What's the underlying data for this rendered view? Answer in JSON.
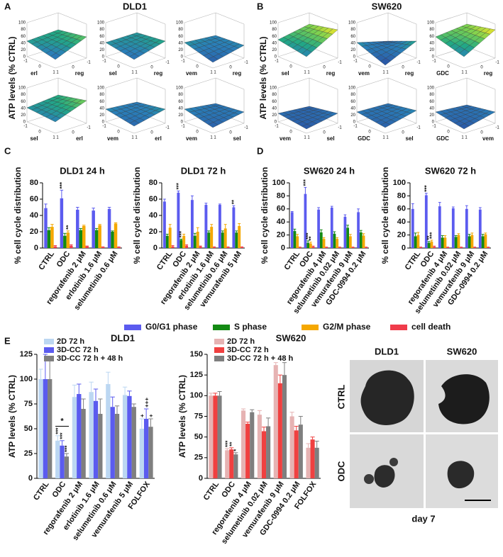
{
  "panel_labels": [
    "A",
    "B",
    "C",
    "D",
    "E"
  ],
  "surfaces": [
    {
      "title": "DLD1",
      "ylabel": "ATP levels (% CTRL)",
      "panels": [
        [
          "erl",
          "reg"
        ],
        [
          "sel",
          "reg"
        ],
        [
          "vem",
          "reg"
        ],
        [
          "sel",
          "erl"
        ],
        [
          "vem",
          "erl"
        ],
        [
          "vem",
          "sel"
        ]
      ]
    },
    {
      "title": "SW620",
      "ylabel": "ATP levels (% CTRL)",
      "panels": [
        [
          "sel",
          "reg"
        ],
        [
          "vem",
          "reg"
        ],
        [
          "GDC",
          "reg"
        ],
        [
          "vem",
          "sel"
        ],
        [
          "GDC",
          "sel"
        ],
        [
          "GDC",
          "vem"
        ]
      ]
    }
  ],
  "surface_zticks": [
    0,
    20,
    40,
    60,
    80,
    100
  ],
  "surface_xyticks": [
    -1,
    0,
    1
  ],
  "cell_cycle_legend": [
    {
      "name": "G0/G1 phase",
      "color": "#5b5bef"
    },
    {
      "name": "S phase",
      "color": "#138a13"
    },
    {
      "name": "G2/M phase",
      "color": "#f5a800"
    },
    {
      "name": "cell death",
      "color": "#f03c4b"
    }
  ],
  "chart_data": [
    {
      "type": "bar",
      "title": "DLD1 24 h",
      "ylabel": "% cell cycle distribution",
      "ylim": [
        0,
        80
      ],
      "yticks": [
        0,
        20,
        40,
        60,
        80
      ],
      "categories": [
        "CTRL",
        "ODC",
        "regorafenib 2 μM",
        "erlotinib 1.6 μM",
        "selumetinib 0.6 μM"
      ],
      "series": [
        {
          "values": [
            49,
            61,
            47,
            46,
            48
          ],
          "errors": [
            5,
            10,
            3,
            3,
            2
          ],
          "marks": [
            null,
            "***",
            null,
            null,
            null
          ]
        },
        {
          "values": [
            22,
            15,
            22,
            22,
            20
          ],
          "errors": [
            3,
            3,
            2,
            2,
            1
          ],
          "marks": [
            null,
            null,
            null,
            null,
            null
          ]
        },
        {
          "values": [
            26,
            19,
            27,
            28,
            30
          ],
          "errors": [
            3,
            2,
            1,
            1,
            1
          ],
          "marks": [
            null,
            "**",
            null,
            null,
            null
          ]
        },
        {
          "values": [
            2,
            3,
            2,
            1,
            1
          ],
          "errors": [
            1,
            1,
            0.5,
            0.5,
            0.5
          ],
          "marks": [
            null,
            null,
            null,
            null,
            null
          ]
        }
      ]
    },
    {
      "type": "bar",
      "title": "DLD1 72 h",
      "ylabel": "% cell cycle distribution",
      "ylim": [
        0,
        80
      ],
      "yticks": [
        0,
        20,
        40,
        60,
        80
      ],
      "categories": [
        "CTRL",
        "ODC",
        "regorafenib 2 μM",
        "erlotinib 1.6 μM",
        "selumetinib 0.6 μM",
        "vemurafenib 5 μM"
      ],
      "series": [
        {
          "values": [
            57,
            68,
            59,
            53,
            53,
            50
          ],
          "errors": [
            3,
            2,
            5,
            2,
            1,
            2
          ],
          "marks": [
            null,
            "***",
            null,
            null,
            null,
            "**"
          ]
        },
        {
          "values": [
            15,
            10,
            15,
            19,
            19,
            19
          ],
          "errors": [
            2,
            1,
            3,
            2,
            2,
            2
          ],
          "marks": [
            null,
            "***",
            null,
            null,
            null,
            null
          ]
        },
        {
          "values": [
            25,
            15,
            20,
            26,
            24,
            27
          ],
          "errors": [
            4,
            2,
            5,
            3,
            5,
            3
          ],
          "marks": [
            null,
            null,
            null,
            null,
            null,
            null
          ]
        },
        {
          "values": [
            2,
            3,
            2,
            1,
            1,
            1
          ],
          "errors": [
            1,
            1,
            0.5,
            0.5,
            0.5,
            0.5
          ],
          "marks": [
            null,
            null,
            null,
            null,
            null,
            null
          ]
        }
      ]
    },
    {
      "type": "bar",
      "title": "SW620 24 h",
      "ylabel": "% cell cycle distribution",
      "ylim": [
        0,
        100
      ],
      "yticks": [
        0,
        20,
        40,
        60,
        80,
        100
      ],
      "categories": [
        "CTRL",
        "ODC",
        "regorafenib 4 μM",
        "selumetinib 0.02 μM",
        "vemurafenib 9 μM",
        "GDC-0994 0.2 μM"
      ],
      "series": [
        {
          "values": [
            55,
            83,
            59,
            62,
            48,
            55
          ],
          "errors": [
            1,
            10,
            3,
            2,
            3,
            5
          ],
          "marks": [
            null,
            "***",
            null,
            null,
            null,
            null
          ]
        },
        {
          "values": [
            26,
            8,
            24,
            22,
            31,
            24
          ],
          "errors": [
            3,
            3,
            4,
            3,
            4,
            3
          ],
          "marks": [
            null,
            "***",
            null,
            null,
            null,
            null
          ]
        },
        {
          "values": [
            18,
            7,
            14,
            14,
            18,
            19
          ],
          "errors": [
            3,
            2,
            2,
            2,
            3,
            3
          ],
          "marks": [
            null,
            "**",
            null,
            null,
            null,
            null
          ]
        },
        {
          "values": [
            1,
            2,
            1,
            1,
            1,
            1
          ],
          "errors": [
            0.5,
            1,
            0.5,
            0.5,
            0.5,
            0.5
          ],
          "marks": [
            null,
            null,
            null,
            null,
            null,
            null
          ]
        }
      ]
    },
    {
      "type": "bar",
      "title": "SW620 72 h",
      "ylabel": "% cell cycle distribution",
      "ylim": [
        0,
        100
      ],
      "yticks": [
        0,
        20,
        40,
        60,
        80,
        100
      ],
      "categories": [
        "CTRL",
        "ODC",
        "regorafenib 4 μM",
        "selumetinib 0.02 μM",
        "vemurafenib 9 μM",
        "GDC-0994 0.2 μM"
      ],
      "series": [
        {
          "values": [
            60,
            81,
            64,
            61,
            60,
            59
          ],
          "errors": [
            8,
            3,
            6,
            2,
            5,
            3
          ],
          "marks": [
            null,
            "***",
            null,
            null,
            null,
            null
          ]
        },
        {
          "values": [
            18,
            8,
            16,
            17,
            18,
            18
          ],
          "errors": [
            5,
            2,
            3,
            2,
            3,
            3
          ],
          "marks": [
            null,
            "**",
            null,
            null,
            null,
            null
          ]
        },
        {
          "values": [
            20,
            10,
            16,
            20,
            20,
            21
          ],
          "errors": [
            4,
            2,
            3,
            2,
            3,
            2
          ],
          "marks": [
            null,
            "***",
            null,
            null,
            null,
            null
          ]
        },
        {
          "values": [
            1,
            2,
            1,
            1,
            1,
            1
          ],
          "errors": [
            0.5,
            1,
            0.5,
            0.5,
            0.5,
            0.5
          ],
          "marks": [
            null,
            null,
            null,
            null,
            null,
            null
          ]
        }
      ]
    },
    {
      "type": "bar",
      "title": "DLD1",
      "ylabel": "ATP levels (% CTRL)",
      "ylim": [
        0,
        125
      ],
      "yticks": [
        0,
        25,
        50,
        75,
        100,
        125
      ],
      "bracket_label": "*",
      "categories": [
        "CTRL",
        "ODC",
        "regorafenib 2 μM",
        "erlotinib 1.6 μM",
        "selumetinib 0.6 μM",
        "vemurafenib 5 μM",
        "FOLFOX"
      ],
      "series": [
        {
          "name": "2D 72 h",
          "color": "#bcd7f2",
          "values": [
            100,
            38,
            82,
            87,
            95,
            84,
            50
          ],
          "errors": [
            10,
            5,
            12,
            10,
            12,
            8,
            10
          ],
          "marks": [
            null,
            "***",
            null,
            null,
            null,
            null,
            "+"
          ]
        },
        {
          "name": "3D-CC 72 h",
          "color": "#5b5bef",
          "values": [
            100,
            33,
            85,
            78,
            72,
            83,
            60
          ],
          "errors": [
            25,
            5,
            10,
            12,
            10,
            5,
            10
          ],
          "marks": [
            null,
            "***",
            null,
            null,
            null,
            null,
            "+++"
          ]
        },
        {
          "name": "3D-CC 72 h + 48 h",
          "color": "#7f7f7f",
          "values": [
            100,
            22,
            70,
            65,
            65,
            72,
            52
          ],
          "errors": [
            20,
            3,
            10,
            15,
            8,
            3,
            8
          ],
          "marks": [
            null,
            "***",
            null,
            null,
            null,
            null,
            "+"
          ]
        }
      ]
    },
    {
      "type": "bar",
      "title": "SW620",
      "ylabel": "ATP levels (% CTRL)",
      "ylim": [
        0,
        150
      ],
      "yticks": [
        0,
        25,
        50,
        75,
        100,
        125,
        150
      ],
      "categories": [
        "CTRL",
        "ODC",
        "regorafenib 4 μM",
        "selumetinib 0.02 μM",
        "vemurafenib 9 μM",
        "GDC-0994 0.2 μM",
        "FOLFOX"
      ],
      "series": [
        {
          "name": "2D 72 h",
          "color": "#e6b3b3",
          "values": [
            100,
            34,
            82,
            77,
            137,
            75,
            37
          ],
          "errors": [
            3,
            2,
            2,
            5,
            3,
            5,
            5
          ],
          "marks": [
            null,
            "***",
            null,
            null,
            null,
            null,
            null
          ]
        },
        {
          "name": "3D-CC 72 h",
          "color": "#f04040",
          "values": [
            100,
            35,
            66,
            57,
            115,
            58,
            47
          ],
          "errors": [
            3,
            2,
            2,
            5,
            10,
            5,
            3
          ],
          "marks": [
            null,
            "**",
            null,
            null,
            null,
            null,
            null
          ]
        },
        {
          "name": "3D-CC 72 h + 48 h",
          "color": "#7f7f7f",
          "values": [
            100,
            29,
            80,
            63,
            125,
            65,
            37
          ],
          "errors": [
            5,
            2,
            3,
            10,
            15,
            10,
            8
          ],
          "marks": [
            null,
            "*",
            null,
            null,
            null,
            null,
            null
          ]
        }
      ]
    }
  ],
  "image_panel": {
    "columns": [
      "DLD1",
      "SW620"
    ],
    "rows": [
      "CTRL",
      "ODC"
    ],
    "caption": "day 7"
  }
}
